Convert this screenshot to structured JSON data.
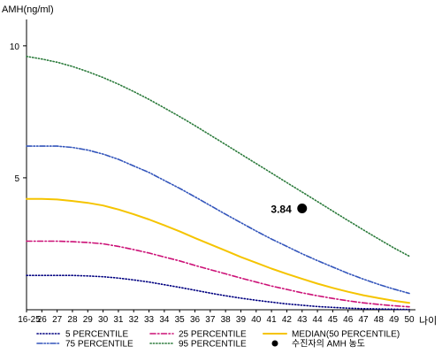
{
  "chart_data": {
    "type": "line",
    "ylabel": "AMH(ng/ml)",
    "xlabel": "나이",
    "x": [
      "16-25",
      "26",
      "27",
      "28",
      "29",
      "30",
      "31",
      "32",
      "33",
      "34",
      "35",
      "36",
      "37",
      "38",
      "39",
      "40",
      "41",
      "42",
      "43",
      "44",
      "45",
      "46",
      "47",
      "48",
      "49",
      "50"
    ],
    "ylim": [
      0,
      11
    ],
    "yticks": [
      "5",
      "10"
    ],
    "grid": false,
    "legend_position": "bottom",
    "series": [
      {
        "name": "5 PERCENTILE",
        "color": "#000080",
        "dash": "dotted",
        "values": [
          1.3,
          1.3,
          1.3,
          1.3,
          1.28,
          1.25,
          1.2,
          1.13,
          1.05,
          0.95,
          0.85,
          0.74,
          0.63,
          0.53,
          0.44,
          0.36,
          0.29,
          0.22,
          0.17,
          0.12,
          0.09,
          0.06,
          0.04,
          0.03,
          0.02,
          0.01
        ]
      },
      {
        "name": "25 PERCENTILE",
        "color": "#cc1177",
        "dash": "dashdot",
        "values": [
          2.6,
          2.6,
          2.6,
          2.58,
          2.55,
          2.5,
          2.4,
          2.28,
          2.15,
          2.0,
          1.85,
          1.68,
          1.52,
          1.36,
          1.2,
          1.05,
          0.9,
          0.77,
          0.64,
          0.53,
          0.43,
          0.34,
          0.26,
          0.2,
          0.15,
          0.11
        ]
      },
      {
        "name": "MEDIAN(50 PERCENTILE)",
        "color": "#f5c400",
        "dash": "solid",
        "values": [
          4.2,
          4.2,
          4.18,
          4.12,
          4.05,
          3.95,
          3.8,
          3.62,
          3.42,
          3.2,
          2.97,
          2.72,
          2.48,
          2.24,
          2.0,
          1.78,
          1.56,
          1.36,
          1.17,
          0.99,
          0.83,
          0.68,
          0.55,
          0.44,
          0.34,
          0.26
        ]
      },
      {
        "name": "75 PERCENTILE",
        "color": "#3355bb",
        "dash": "dashdotdot",
        "values": [
          6.2,
          6.2,
          6.2,
          6.15,
          6.05,
          5.9,
          5.7,
          5.45,
          5.2,
          4.9,
          4.6,
          4.28,
          3.95,
          3.62,
          3.3,
          2.98,
          2.68,
          2.4,
          2.12,
          1.86,
          1.62,
          1.38,
          1.16,
          0.96,
          0.78,
          0.62
        ]
      },
      {
        "name": "95 PERCENTILE",
        "color": "#2a7a3a",
        "dash": "dotted",
        "values": [
          9.6,
          9.5,
          9.38,
          9.22,
          9.02,
          8.8,
          8.55,
          8.27,
          7.97,
          7.65,
          7.32,
          6.98,
          6.62,
          6.26,
          5.9,
          5.54,
          5.18,
          4.82,
          4.46,
          4.1,
          3.74,
          3.38,
          3.03,
          2.68,
          2.34,
          2.03
        ]
      }
    ],
    "annotation": {
      "label": "수진자의 AMH 농도",
      "x": "43",
      "y": 3.84,
      "value_label": "3.84",
      "color": "#000000"
    }
  }
}
